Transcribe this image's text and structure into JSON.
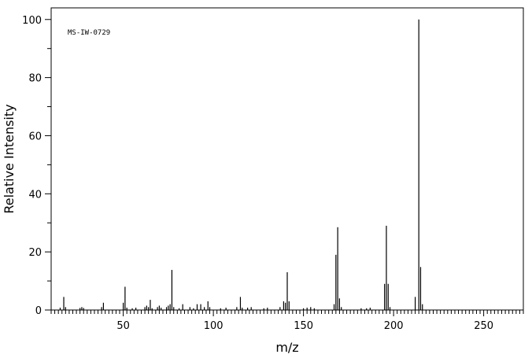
{
  "chart_data": {
    "type": "bar",
    "annotation": "MS-IW-0729",
    "xlabel": "m/z",
    "ylabel": "Relative Intensity",
    "xlim": [
      10,
      272
    ],
    "ylim": [
      0,
      104
    ],
    "x_major_ticks": [
      50,
      100,
      150,
      200,
      250
    ],
    "x_minor_step": 2,
    "y_major_ticks": [
      0,
      20,
      40,
      60,
      80,
      100
    ],
    "y_minor_step": 10,
    "grid": false,
    "legend": "none",
    "colors": {
      "peak": "#000000",
      "axis": "#000000"
    },
    "peaks": [
      {
        "x": 15,
        "y": 0.8
      },
      {
        "x": 17,
        "y": 4.5
      },
      {
        "x": 18,
        "y": 1.0
      },
      {
        "x": 26,
        "y": 0.7
      },
      {
        "x": 27,
        "y": 1.0
      },
      {
        "x": 28,
        "y": 0.7
      },
      {
        "x": 38,
        "y": 1.0
      },
      {
        "x": 39,
        "y": 2.5
      },
      {
        "x": 50,
        "y": 2.5
      },
      {
        "x": 51,
        "y": 8.0
      },
      {
        "x": 52,
        "y": 0.8
      },
      {
        "x": 55,
        "y": 0.6
      },
      {
        "x": 57,
        "y": 0.8
      },
      {
        "x": 62,
        "y": 1.0
      },
      {
        "x": 63,
        "y": 1.5
      },
      {
        "x": 64,
        "y": 1.0
      },
      {
        "x": 65,
        "y": 3.5
      },
      {
        "x": 66,
        "y": 0.6
      },
      {
        "x": 69,
        "y": 1.0
      },
      {
        "x": 70,
        "y": 1.5
      },
      {
        "x": 71,
        "y": 0.8
      },
      {
        "x": 74,
        "y": 1.0
      },
      {
        "x": 75,
        "y": 1.5
      },
      {
        "x": 76,
        "y": 2.0
      },
      {
        "x": 77,
        "y": 13.8
      },
      {
        "x": 78,
        "y": 1.0
      },
      {
        "x": 81,
        "y": 0.6
      },
      {
        "x": 83,
        "y": 2.0
      },
      {
        "x": 87,
        "y": 1.0
      },
      {
        "x": 89,
        "y": 0.6
      },
      {
        "x": 91,
        "y": 2.0
      },
      {
        "x": 93,
        "y": 2.0
      },
      {
        "x": 95,
        "y": 1.0
      },
      {
        "x": 97,
        "y": 3.0
      },
      {
        "x": 98,
        "y": 1.0
      },
      {
        "x": 104,
        "y": 0.6
      },
      {
        "x": 107,
        "y": 0.8
      },
      {
        "x": 113,
        "y": 1.0
      },
      {
        "x": 115,
        "y": 4.5
      },
      {
        "x": 116,
        "y": 0.8
      },
      {
        "x": 119,
        "y": 0.8
      },
      {
        "x": 121,
        "y": 1.0
      },
      {
        "x": 128,
        "y": 0.6
      },
      {
        "x": 130,
        "y": 0.8
      },
      {
        "x": 137,
        "y": 1.0
      },
      {
        "x": 139,
        "y": 3.0
      },
      {
        "x": 140,
        "y": 2.5
      },
      {
        "x": 141,
        "y": 13.0
      },
      {
        "x": 142,
        "y": 3.0
      },
      {
        "x": 150,
        "y": 0.6
      },
      {
        "x": 152,
        "y": 0.8
      },
      {
        "x": 154,
        "y": 1.0
      },
      {
        "x": 156,
        "y": 0.6
      },
      {
        "x": 167,
        "y": 2.0
      },
      {
        "x": 168,
        "y": 19.0
      },
      {
        "x": 169,
        "y": 28.5
      },
      {
        "x": 170,
        "y": 4.0
      },
      {
        "x": 171,
        "y": 1.0
      },
      {
        "x": 182,
        "y": 0.6
      },
      {
        "x": 185,
        "y": 0.6
      },
      {
        "x": 187,
        "y": 0.8
      },
      {
        "x": 195,
        "y": 9.0
      },
      {
        "x": 196,
        "y": 29.0
      },
      {
        "x": 197,
        "y": 9.0
      },
      {
        "x": 198,
        "y": 1.0
      },
      {
        "x": 212,
        "y": 4.5
      },
      {
        "x": 214,
        "y": 100
      },
      {
        "x": 215,
        "y": 14.8
      },
      {
        "x": 216,
        "y": 2.0
      }
    ]
  }
}
